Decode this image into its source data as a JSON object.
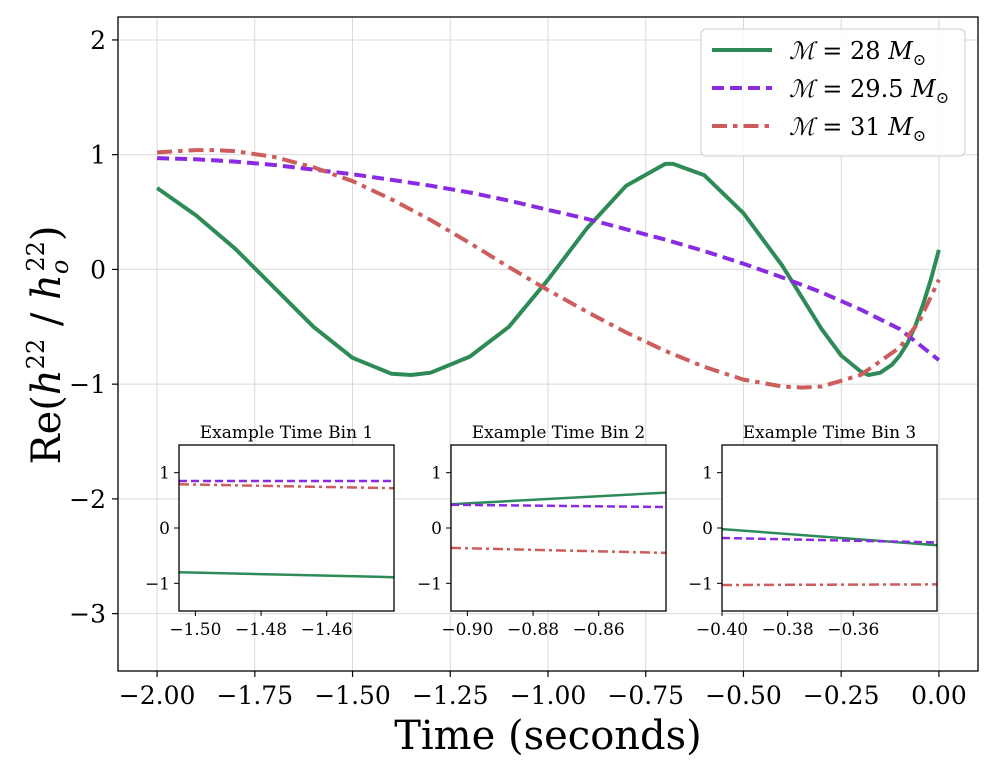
{
  "chart_data": {
    "type": "line",
    "xlabel": "Time (seconds)",
    "ylabel": "Re(h22 / ho22)",
    "ylabel_parts": {
      "pre": "Re(",
      "h": "h",
      "sup1": "22",
      "sep": " / ",
      "ho": "h",
      "sub": "o",
      "sup2": "22",
      "post": ")"
    },
    "xlim": [
      -2.1,
      0.1
    ],
    "ylim": [
      -3.5,
      2.2
    ],
    "xticks": [
      -2.0,
      -1.75,
      -1.5,
      -1.25,
      -1.0,
      -0.75,
      -0.5,
      -0.25,
      0.0
    ],
    "xtick_labels": [
      "−2.00",
      "−1.75",
      "−1.50",
      "−1.25",
      "−1.00",
      "−0.75",
      "−0.50",
      "−0.25",
      "0.00"
    ],
    "yticks": [
      -3,
      -2,
      -1,
      0,
      1,
      2
    ],
    "ytick_labels": [
      "−3",
      "−2",
      "−1",
      "0",
      "1",
      "2"
    ],
    "grid": true,
    "legend_position": "top-right",
    "series": [
      {
        "name": "M = 28 M⊙",
        "label": "= 28",
        "color": "#2e8b57",
        "style": "solid",
        "x": [
          -2.0,
          -1.9,
          -1.8,
          -1.7,
          -1.6,
          -1.5,
          -1.4,
          -1.35,
          -1.3,
          -1.2,
          -1.1,
          -1.0,
          -0.9,
          -0.8,
          -0.7,
          -0.68,
          -0.6,
          -0.5,
          -0.4,
          -0.3,
          -0.25,
          -0.2,
          -0.18,
          -0.15,
          -0.12,
          -0.1,
          -0.08,
          -0.06,
          -0.04,
          -0.02,
          0.0
        ],
        "values": [
          0.71,
          0.47,
          0.18,
          -0.16,
          -0.5,
          -0.77,
          -0.91,
          -0.92,
          -0.9,
          -0.76,
          -0.5,
          -0.09,
          0.36,
          0.73,
          0.92,
          0.92,
          0.82,
          0.49,
          0.03,
          -0.52,
          -0.75,
          -0.89,
          -0.92,
          -0.9,
          -0.83,
          -0.75,
          -0.64,
          -0.49,
          -0.3,
          -0.08,
          0.17
        ]
      },
      {
        "name": "M = 29.5 M⊙",
        "label": "= 29.5",
        "color": "#8a2be2",
        "style": "dashed",
        "x": [
          -2.0,
          -1.9,
          -1.8,
          -1.7,
          -1.6,
          -1.5,
          -1.4,
          -1.3,
          -1.2,
          -1.1,
          -1.0,
          -0.9,
          -0.8,
          -0.7,
          -0.6,
          -0.5,
          -0.4,
          -0.3,
          -0.2,
          -0.1,
          0.0
        ],
        "values": [
          0.97,
          0.96,
          0.94,
          0.91,
          0.87,
          0.83,
          0.78,
          0.73,
          0.67,
          0.6,
          0.52,
          0.44,
          0.35,
          0.26,
          0.16,
          0.05,
          -0.07,
          -0.2,
          -0.35,
          -0.52,
          -0.79
        ]
      },
      {
        "name": "M = 31 M⊙",
        "label": "= 31",
        "color": "#cd5c5c",
        "style": "dashdot",
        "x": [
          -2.0,
          -1.9,
          -1.85,
          -1.8,
          -1.7,
          -1.6,
          -1.5,
          -1.4,
          -1.3,
          -1.2,
          -1.1,
          -1.0,
          -0.9,
          -0.8,
          -0.7,
          -0.6,
          -0.5,
          -0.4,
          -0.35,
          -0.3,
          -0.2,
          -0.1,
          -0.05,
          0.0
        ],
        "values": [
          1.02,
          1.04,
          1.04,
          1.03,
          0.98,
          0.89,
          0.77,
          0.61,
          0.43,
          0.23,
          0.02,
          -0.18,
          -0.37,
          -0.55,
          -0.71,
          -0.85,
          -0.96,
          -1.02,
          -1.03,
          -1.02,
          -0.92,
          -0.68,
          -0.45,
          -0.09
        ]
      }
    ],
    "insets": [
      {
        "title": "Example Time Bin 1",
        "xlim": [
          -1.505,
          -1.4395
        ],
        "ylim": [
          -1.5,
          1.5
        ],
        "xticks": [
          -1.5,
          -1.48,
          -1.46
        ],
        "xtick_labels": [
          "−1.50",
          "−1.48",
          "−1.46"
        ],
        "yticks": [
          -1,
          0,
          1
        ],
        "ytick_labels": [
          "−1",
          "0",
          "1"
        ],
        "lines": [
          {
            "series": 0,
            "x": [
              -1.505,
              -1.4395
            ],
            "values": [
              -0.8,
              -0.89
            ]
          },
          {
            "series": 1,
            "x": [
              -1.505,
              -1.4395
            ],
            "values": [
              0.85,
              0.85
            ]
          },
          {
            "series": 2,
            "x": [
              -1.505,
              -1.4395
            ],
            "values": [
              0.79,
              0.72
            ]
          }
        ]
      },
      {
        "title": "Example Time Bin 2",
        "xlim": [
          -0.905,
          -0.8395
        ],
        "ylim": [
          -1.5,
          1.5
        ],
        "xticks": [
          -0.9,
          -0.88,
          -0.86
        ],
        "xtick_labels": [
          "−0.90",
          "−0.88",
          "−0.86"
        ],
        "yticks": [
          -1,
          0,
          1
        ],
        "ytick_labels": [
          "−1",
          "0",
          "1"
        ],
        "lines": [
          {
            "series": 0,
            "x": [
              -0.905,
              -0.8395
            ],
            "values": [
              0.43,
              0.64
            ]
          },
          {
            "series": 1,
            "x": [
              -0.905,
              -0.8395
            ],
            "values": [
              0.42,
              0.38
            ]
          },
          {
            "series": 2,
            "x": [
              -0.905,
              -0.8395
            ],
            "values": [
              -0.36,
              -0.45
            ]
          }
        ]
      },
      {
        "title": "Example Time Bin 3",
        "xlim": [
          -0.4,
          -0.3345
        ],
        "ylim": [
          -1.5,
          1.5
        ],
        "xticks": [
          -0.4,
          -0.38,
          -0.36
        ],
        "xtick_labels": [
          "−0.40",
          "−0.38",
          "−0.36"
        ],
        "yticks": [
          -1,
          0,
          1
        ],
        "ytick_labels": [
          "−1",
          "0",
          "1"
        ],
        "lines": [
          {
            "series": 0,
            "x": [
              -0.4,
              -0.3345
            ],
            "values": [
              -0.02,
              -0.31
            ]
          },
          {
            "series": 1,
            "x": [
              -0.4,
              -0.3345
            ],
            "values": [
              -0.18,
              -0.26
            ]
          },
          {
            "series": 2,
            "x": [
              -0.4,
              -0.3345
            ],
            "values": [
              -1.03,
              -1.02
            ]
          }
        ]
      }
    ]
  }
}
